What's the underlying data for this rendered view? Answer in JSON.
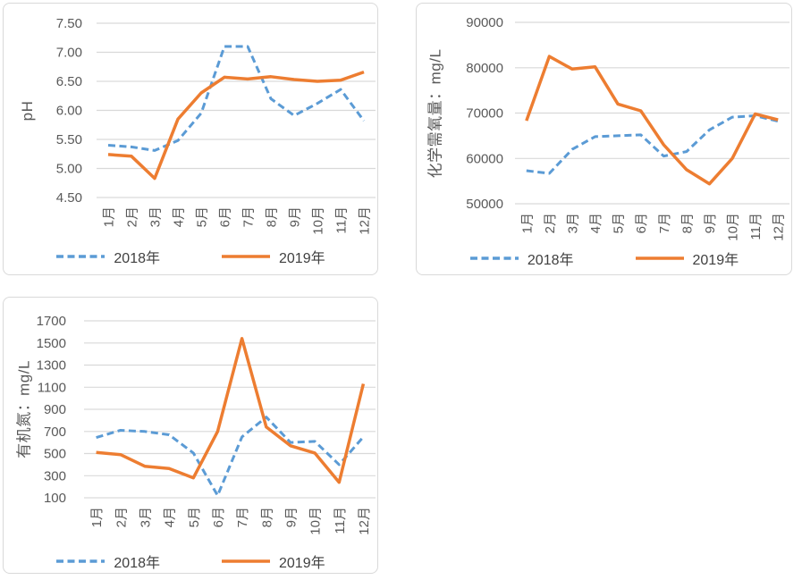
{
  "colors": {
    "series_2018": "#5B9BD5",
    "series_2019": "#ED7D31",
    "gridline": "#D9D9D9",
    "panel_border": "#D9D9D9",
    "tick_text": "#595959",
    "legend_text": "#404040",
    "background": "#FFFFFF"
  },
  "chart_data": [
    {
      "type": "line",
      "title": "",
      "xlabel": "",
      "ylabel": "pH",
      "categories": [
        "1月",
        "2月",
        "3月",
        "4月",
        "5月",
        "6月",
        "7月",
        "8月",
        "9月",
        "10月",
        "11月",
        "12月"
      ],
      "ylim": [
        4.5,
        7.5
      ],
      "yticks": [
        7.5,
        7.0,
        6.5,
        6.0,
        5.5,
        5.0,
        4.5
      ],
      "ytick_labels": [
        "7.50",
        "7.00",
        "6.50",
        "6.00",
        "5.50",
        "5.00",
        "4.50"
      ],
      "grid": true,
      "legend_position": "bottom",
      "series": [
        {
          "name": "2018年",
          "dash": true,
          "color_key": "series_2018",
          "values": [
            5.4,
            5.37,
            5.31,
            5.48,
            5.95,
            7.1,
            7.1,
            6.2,
            5.91,
            6.12,
            6.36,
            5.82
          ]
        },
        {
          "name": "2019年",
          "dash": false,
          "color_key": "series_2019",
          "values": [
            5.24,
            5.21,
            4.83,
            5.85,
            6.3,
            6.57,
            6.54,
            6.58,
            6.53,
            6.5,
            6.52,
            6.66
          ]
        }
      ]
    },
    {
      "type": "line",
      "title": "",
      "xlabel": "",
      "ylabel": "化学需氧量：mg/L",
      "categories": [
        "1月",
        "2月",
        "3月",
        "4月",
        "5月",
        "6月",
        "7月",
        "8月",
        "9月",
        "10月",
        "11月",
        "12月"
      ],
      "ylim": [
        50000,
        90000
      ],
      "yticks": [
        90000,
        80000,
        70000,
        60000,
        50000
      ],
      "ytick_labels": [
        "90000",
        "80000",
        "70000",
        "60000",
        "50000"
      ],
      "grid": true,
      "legend_position": "bottom",
      "series": [
        {
          "name": "2018年",
          "dash": true,
          "color_key": "series_2018",
          "values": [
            57300,
            56700,
            62000,
            64800,
            65000,
            65200,
            60500,
            61500,
            66300,
            69100,
            69400,
            68200
          ]
        },
        {
          "name": "2019年",
          "dash": false,
          "color_key": "series_2019",
          "values": [
            68300,
            82500,
            79700,
            80200,
            72000,
            70500,
            63000,
            57500,
            54400,
            60000,
            69800,
            68500
          ]
        }
      ]
    },
    {
      "type": "line",
      "title": "",
      "xlabel": "",
      "ylabel": "有机氮：mg/L",
      "categories": [
        "1月",
        "2月",
        "3月",
        "4月",
        "5月",
        "6月",
        "7月",
        "8月",
        "9月",
        "10月",
        "11月",
        "12月"
      ],
      "ylim": [
        100,
        1700
      ],
      "yticks": [
        1700,
        1500,
        1300,
        1100,
        900,
        700,
        500,
        300,
        100
      ],
      "ytick_labels": [
        "1700",
        "1500",
        "1300",
        "1100",
        "900",
        "700",
        "500",
        "300",
        "100"
      ],
      "grid": true,
      "legend_position": "bottom",
      "series": [
        {
          "name": "2018年",
          "dash": true,
          "color_key": "series_2018",
          "values": [
            645,
            710,
            700,
            670,
            505,
            120,
            650,
            830,
            600,
            610,
            400,
            650
          ]
        },
        {
          "name": "2019年",
          "dash": false,
          "color_key": "series_2019",
          "values": [
            510,
            490,
            385,
            365,
            280,
            700,
            1540,
            740,
            570,
            505,
            240,
            1130
          ]
        }
      ]
    }
  ]
}
